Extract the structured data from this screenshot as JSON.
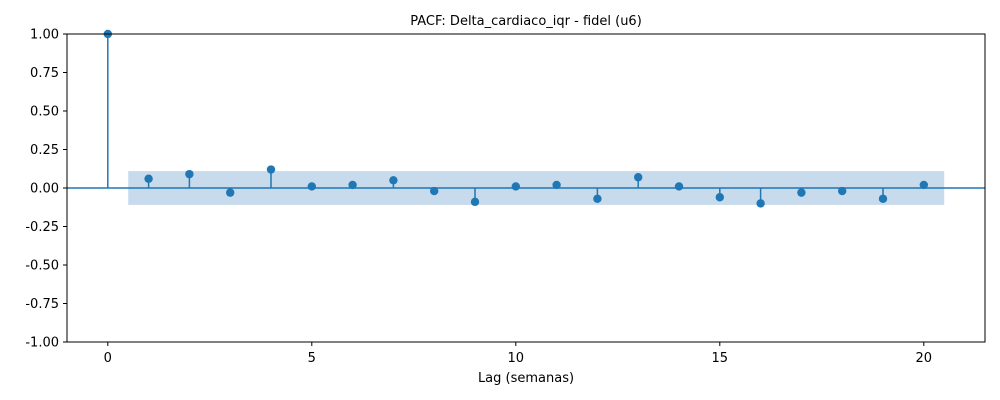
{
  "chart_data": {
    "type": "stem",
    "title": "PACF: Delta_cardiaco_iqr - fidel (u6)",
    "xlabel": "Lag (semanas)",
    "ylabel": "",
    "xlim": [
      -1,
      21.5
    ],
    "ylim": [
      -1.0,
      1.0
    ],
    "xticks": [
      0,
      5,
      10,
      15,
      20
    ],
    "yticks": [
      "-1.00",
      "-0.75",
      "-0.50",
      "-0.25",
      "0.00",
      "0.25",
      "0.50",
      "0.75",
      "1.00"
    ],
    "lags": [
      0,
      1,
      2,
      3,
      4,
      5,
      6,
      7,
      8,
      9,
      10,
      11,
      12,
      13,
      14,
      15,
      16,
      17,
      18,
      19,
      20
    ],
    "values": [
      1.0,
      0.06,
      0.09,
      -0.03,
      0.12,
      0.01,
      0.02,
      0.05,
      -0.02,
      -0.09,
      0.01,
      0.02,
      -0.07,
      0.07,
      0.01,
      -0.06,
      -0.1,
      -0.03,
      -0.02,
      -0.07,
      0.02
    ],
    "confidence_band": {
      "x_range": [
        0.5,
        20.5
      ],
      "lower": -0.11,
      "upper": 0.11
    },
    "grid": false,
    "legend": "none",
    "colors": {
      "stem": "#1f77b4",
      "band": "#c5d9ec",
      "axis": "#000000"
    }
  }
}
